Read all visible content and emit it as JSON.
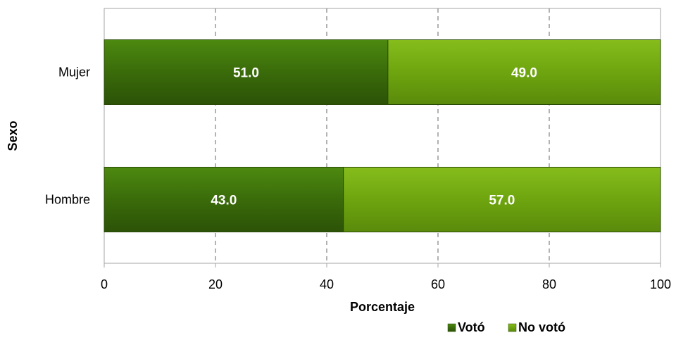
{
  "chart_data": {
    "type": "bar",
    "orientation": "horizontal",
    "stacked": true,
    "categories": [
      "Mujer",
      "Hombre"
    ],
    "series": [
      {
        "name": "Votó",
        "values": [
          51.0,
          43.0
        ],
        "color": "#3a6b0a"
      },
      {
        "name": "No votó",
        "values": [
          49.0,
          57.0
        ],
        "color": "#6ea50f"
      }
    ],
    "xlabel": "Porcentaje",
    "ylabel": "Sexo",
    "xlim": [
      0,
      100
    ],
    "xticks": [
      0,
      20,
      40,
      60,
      80,
      100
    ],
    "grid": "vertical dashed",
    "legend_position": "bottom-right",
    "label_color": "#ffffff"
  }
}
